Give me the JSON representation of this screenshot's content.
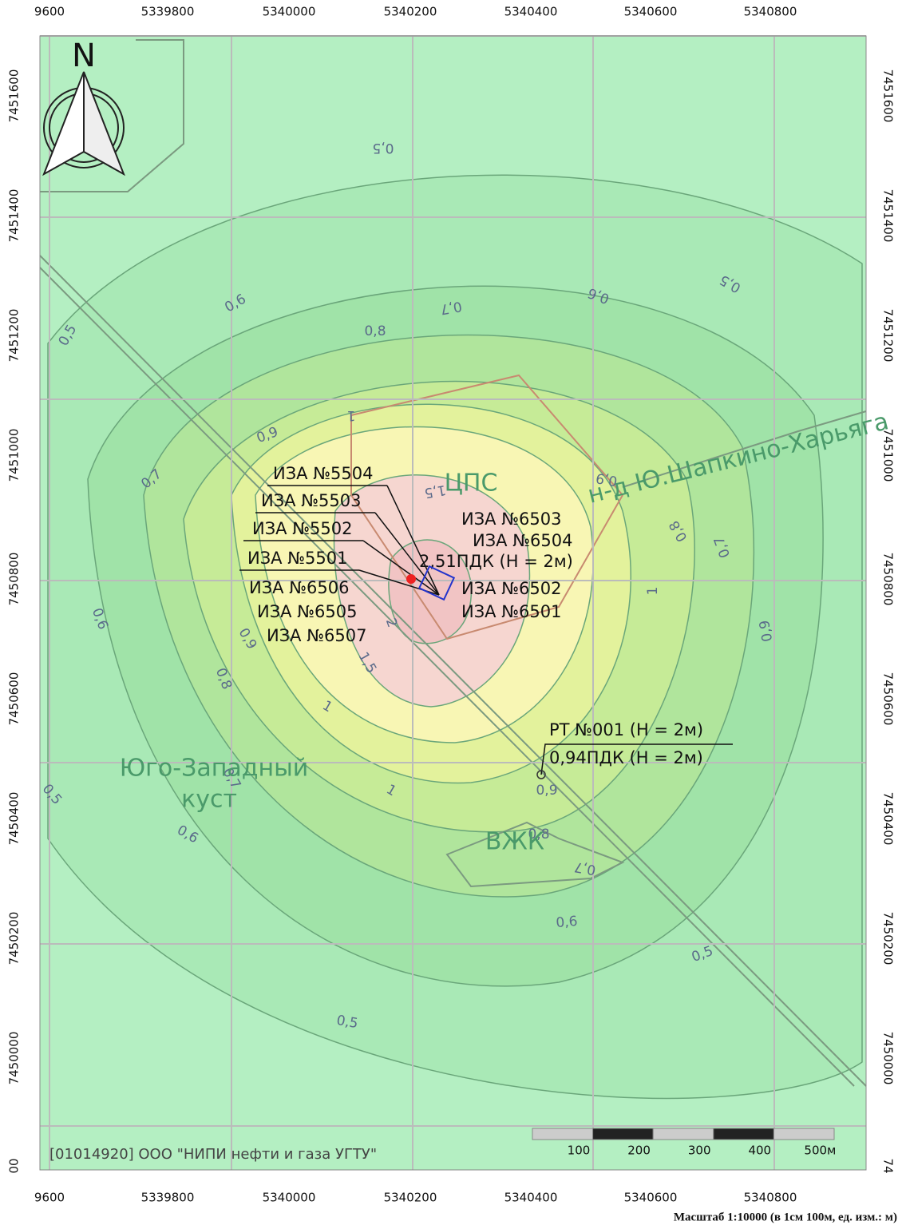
{
  "axes": {
    "top": [
      "9600",
      "5339800",
      "5340000",
      "5340200",
      "5340400",
      "5340600",
      "5340800"
    ],
    "bottom": [
      "9600",
      "5339800",
      "5340000",
      "5340200",
      "5340400",
      "5340600",
      "5340800"
    ],
    "left": [
      "7451600",
      "7451400",
      "7451200",
      "7451000",
      "7450800",
      "7450600",
      "7450400",
      "7450200",
      "7450000",
      "00"
    ],
    "right": [
      "7451600",
      "7451400",
      "7451200",
      "7451000",
      "7450800",
      "7450600",
      "7450400",
      "7450200",
      "7450000",
      "74"
    ]
  },
  "north": "N",
  "contour_labels": [
    "0,5",
    "0,6",
    "0,7",
    "0,6",
    "0,5",
    "0,5",
    "0,8",
    "1",
    "0,9",
    "0,9",
    "0,7",
    "1,5",
    "0,8",
    "0,7",
    "1",
    "0,6",
    "0,9",
    "0,9",
    "2",
    "1,5",
    "0,8",
    "1",
    "0,7",
    "1",
    "0,9",
    "0,5",
    "0,6",
    "0,8",
    "0,7",
    "0,6",
    "0,5",
    "0,5"
  ],
  "places": [
    "ЦПС",
    "Юго-Западный",
    "куст",
    "ВЖК",
    "н-д Ю.Шапкино-Харьяга"
  ],
  "sources_left": [
    "ИЗА №5504",
    "ИЗА №5503",
    "ИЗА №5502",
    "ИЗА №5501",
    "ИЗА №6506",
    "ИЗА №6505",
    "ИЗА №6507"
  ],
  "sources_right": [
    "ИЗА №6503",
    "ИЗА №6504",
    "2,51ПДК (Н = 2м)",
    "ИЗА №6502",
    "ИЗА №6501"
  ],
  "point": {
    "name": "РТ №001 (Н = 2м)",
    "value": "0,94ПДК (Н = 2м)"
  },
  "scale_bar": [
    "100",
    "200",
    "300",
    "400",
    "500м"
  ],
  "credit": "[01014920] ООО \"НИПИ нефти и газа УГТУ\"",
  "scale_caption": "Масштаб 1:10000 (в 1см 100м, ед. изм.: м)"
}
